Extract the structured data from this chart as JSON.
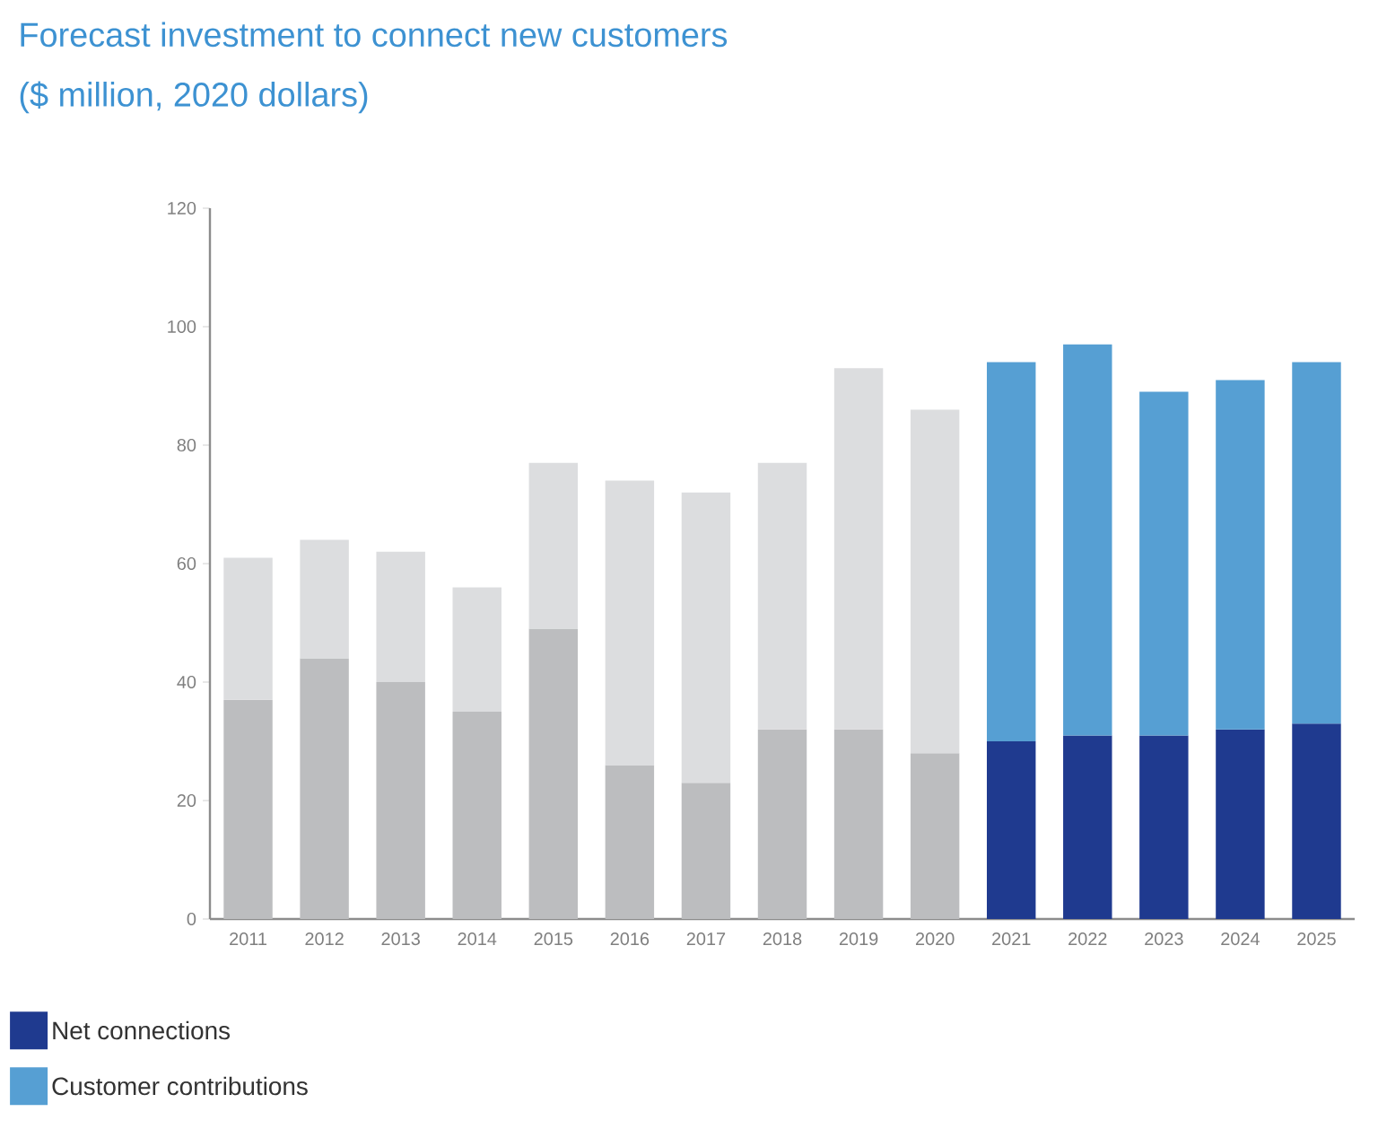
{
  "chart_data": {
    "type": "bar",
    "title": "Forecast investment to connect new customers",
    "subtitle": "($ million, 2020 dollars)",
    "categories": [
      "2011",
      "2012",
      "2013",
      "2014",
      "2015",
      "2016",
      "2017",
      "2018",
      "2019",
      "2020",
      "2021",
      "2022",
      "2023",
      "2024",
      "2025"
    ],
    "stacked": true,
    "series": [
      {
        "name": "Net connections",
        "color": "#1f3a8f",
        "colors": [
          "#bcbdbf",
          "#bcbdbf",
          "#bcbdbf",
          "#bcbdbf",
          "#bcbdbf",
          "#bcbdbf",
          "#bcbdbf",
          "#bcbdbf",
          "#bcbdbf",
          "#bcbdbf",
          "#1f3a8f",
          "#1f3a8f",
          "#1f3a8f",
          "#1f3a8f",
          "#1f3a8f"
        ],
        "values": [
          37,
          44,
          40,
          35,
          49,
          26,
          23,
          32,
          32,
          28,
          30,
          31,
          31,
          32,
          33
        ]
      },
      {
        "name": "Customer contributions",
        "color": "#569fd3",
        "colors": [
          "#dcdddf",
          "#dcdddf",
          "#dcdddf",
          "#dcdddf",
          "#dcdddf",
          "#dcdddf",
          "#dcdddf",
          "#dcdddf",
          "#dcdddf",
          "#dcdddf",
          "#569fd3",
          "#569fd3",
          "#569fd3",
          "#569fd3",
          "#569fd3"
        ],
        "values": [
          24,
          20,
          22,
          21,
          28,
          48,
          49,
          45,
          61,
          58,
          64,
          66,
          58,
          59,
          61
        ]
      }
    ],
    "ylim": [
      0,
      120
    ],
    "yticks": [
      0,
      20,
      40,
      60,
      80,
      100,
      120
    ],
    "legend": "bottom"
  }
}
